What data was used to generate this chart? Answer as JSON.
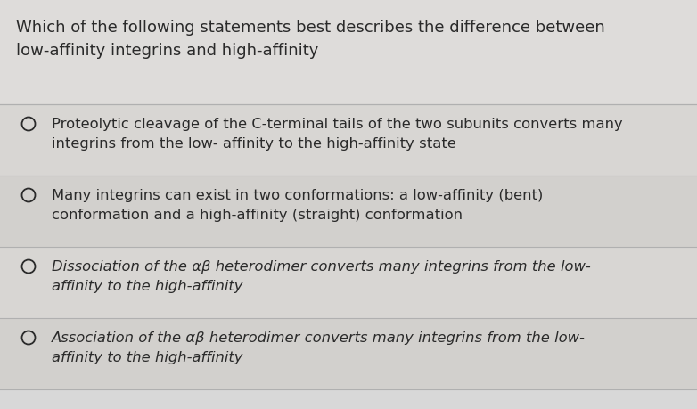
{
  "background_color": "#d8d8d8",
  "question_bg": "#e2e0de",
  "option_bg": "#d5d3d0",
  "question_text_line1": "Which of the following statements best describes the difference between",
  "question_text_line2": "low-affinity integrins and high-affinity",
  "options": [
    {
      "text": "Proteolytic cleavage of the C-terminal tails of the two subunits converts many\nintegrins from the low- affinity to the high-affinity state",
      "italic": false
    },
    {
      "text": "Many integrins can exist in two conformations: a low-affinity (bent)\nconformation and a high-affinity (straight) conformation",
      "italic": false
    },
    {
      "text": "Dissociation of the αβ heterodimer converts many integrins from the low-\naffinity to the high-affinity",
      "italic": true
    },
    {
      "text": "Association of the αβ heterodimer converts many integrins from the low-\naffinity to the high-affinity",
      "italic": true
    }
  ],
  "text_color": "#2a2a2a",
  "question_fontsize": 13.0,
  "option_fontsize": 11.8,
  "circle_color": "#2a2a2a",
  "line_color": "#b0b0b0",
  "fig_width": 7.82,
  "fig_height": 4.6,
  "dpi": 100
}
